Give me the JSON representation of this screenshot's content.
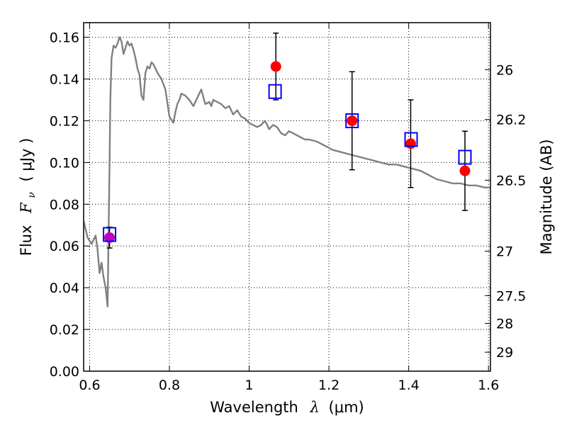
{
  "chart_data": {
    "type": "scatter",
    "xlabel": "Wavelength",
    "xlabel_symbol": "λ",
    "xlabel_unit": "(μm)",
    "ylabel": "Flux",
    "ylabel_symbol": "F",
    "ylabel_symbol_sub": "ν",
    "ylabel_unit": "( μJy )",
    "y2label": "Magnitude (AB)",
    "xlim": [
      0.585,
      1.605
    ],
    "ylim": [
      0.0,
      0.167
    ],
    "grid": true,
    "x_ticks": [
      {
        "value": 0.6,
        "label": "0.6"
      },
      {
        "value": 0.8,
        "label": "0.8"
      },
      {
        "value": 1.0,
        "label": "1"
      },
      {
        "value": 1.2,
        "label": "1.2"
      },
      {
        "value": 1.4,
        "label": "1.4"
      },
      {
        "value": 1.6,
        "label": "1.6"
      }
    ],
    "y_ticks": [
      {
        "value": 0.0,
        "label": "0.00"
      },
      {
        "value": 0.02,
        "label": "0.02"
      },
      {
        "value": 0.04,
        "label": "0.04"
      },
      {
        "value": 0.06,
        "label": "0.06"
      },
      {
        "value": 0.08,
        "label": "0.08"
      },
      {
        "value": 0.1,
        "label": "0.10"
      },
      {
        "value": 0.12,
        "label": "0.12"
      },
      {
        "value": 0.14,
        "label": "0.14"
      },
      {
        "value": 0.16,
        "label": "0.16"
      }
    ],
    "y2_ticks": [
      {
        "flux": 0.1445,
        "label": "26"
      },
      {
        "flux": 0.1206,
        "label": "26.2"
      },
      {
        "flux": 0.0915,
        "label": "26.5"
      },
      {
        "flux": 0.0575,
        "label": "27"
      },
      {
        "flux": 0.0362,
        "label": "27.5"
      },
      {
        "flux": 0.0229,
        "label": "28"
      },
      {
        "flux": 0.0091,
        "label": "29"
      }
    ],
    "series": [
      {
        "kind": "line",
        "color": "#808080",
        "x": [
          0.585,
          0.595,
          0.605,
          0.615,
          0.62,
          0.625,
          0.63,
          0.635,
          0.64,
          0.645,
          0.65,
          0.652,
          0.655,
          0.66,
          0.665,
          0.67,
          0.675,
          0.68,
          0.685,
          0.69,
          0.695,
          0.7,
          0.705,
          0.71,
          0.715,
          0.72,
          0.725,
          0.73,
          0.735,
          0.74,
          0.745,
          0.75,
          0.755,
          0.76,
          0.77,
          0.78,
          0.79,
          0.8,
          0.81,
          0.815,
          0.82,
          0.825,
          0.83,
          0.84,
          0.85,
          0.86,
          0.87,
          0.88,
          0.89,
          0.9,
          0.905,
          0.91,
          0.92,
          0.93,
          0.94,
          0.95,
          0.96,
          0.97,
          0.98,
          0.99,
          1.0,
          1.01,
          1.02,
          1.03,
          1.04,
          1.05,
          1.06,
          1.07,
          1.08,
          1.09,
          1.1,
          1.11,
          1.12,
          1.13,
          1.14,
          1.15,
          1.17,
          1.19,
          1.21,
          1.23,
          1.25,
          1.27,
          1.29,
          1.31,
          1.33,
          1.35,
          1.37,
          1.39,
          1.41,
          1.43,
          1.45,
          1.47,
          1.49,
          1.51,
          1.53,
          1.55,
          1.57,
          1.59,
          1.605
        ],
        "y": [
          0.072,
          0.064,
          0.061,
          0.065,
          0.058,
          0.047,
          0.052,
          0.045,
          0.04,
          0.031,
          0.1,
          0.13,
          0.15,
          0.156,
          0.155,
          0.157,
          0.16,
          0.158,
          0.152,
          0.155,
          0.158,
          0.156,
          0.157,
          0.154,
          0.15,
          0.145,
          0.142,
          0.132,
          0.13,
          0.143,
          0.146,
          0.145,
          0.148,
          0.147,
          0.143,
          0.14,
          0.135,
          0.122,
          0.119,
          0.124,
          0.128,
          0.13,
          0.133,
          0.132,
          0.13,
          0.127,
          0.131,
          0.135,
          0.128,
          0.129,
          0.127,
          0.13,
          0.129,
          0.128,
          0.126,
          0.127,
          0.123,
          0.125,
          0.122,
          0.121,
          0.119,
          0.118,
          0.117,
          0.118,
          0.12,
          0.116,
          0.118,
          0.117,
          0.114,
          0.113,
          0.115,
          0.114,
          0.113,
          0.112,
          0.111,
          0.111,
          0.11,
          0.108,
          0.106,
          0.105,
          0.104,
          0.103,
          0.102,
          0.101,
          0.1,
          0.099,
          0.099,
          0.098,
          0.097,
          0.096,
          0.094,
          0.092,
          0.091,
          0.09,
          0.09,
          0.089,
          0.089,
          0.088,
          0.088
        ]
      },
      {
        "kind": "points",
        "marker": "circle",
        "color": "#ff0000",
        "points": [
          {
            "x": 1.067,
            "y": 0.146,
            "err": 0.016
          },
          {
            "x": 1.258,
            "y": 0.12,
            "err": 0.0235
          },
          {
            "x": 1.405,
            "y": 0.109,
            "err": 0.021
          },
          {
            "x": 1.541,
            "y": 0.096,
            "err": 0.019
          }
        ]
      },
      {
        "kind": "points",
        "marker": "circle",
        "color": "#bf00bf",
        "points": [
          {
            "x": 0.65,
            "y": 0.064,
            "err": 0.005
          }
        ]
      },
      {
        "kind": "points",
        "marker": "square-open",
        "color": "#0000ff",
        "points": [
          {
            "x": 0.65,
            "y": 0.0655
          },
          {
            "x": 1.065,
            "y": 0.134
          },
          {
            "x": 1.258,
            "y": 0.12
          },
          {
            "x": 1.406,
            "y": 0.111
          },
          {
            "x": 1.541,
            "y": 0.1025
          }
        ]
      }
    ]
  }
}
